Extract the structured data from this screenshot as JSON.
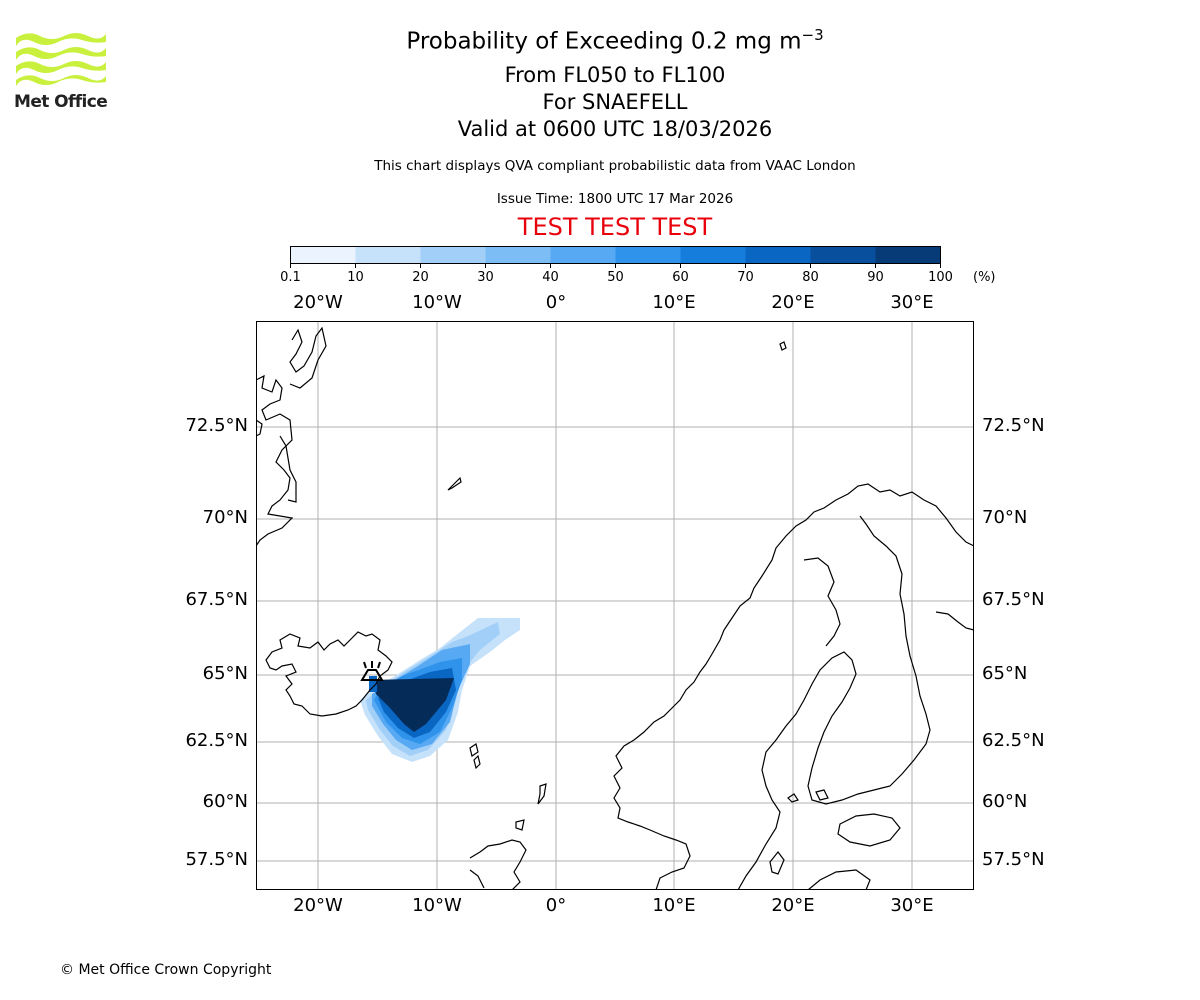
{
  "logo": {
    "text": "Met Office",
    "color": "#c8f03c"
  },
  "titles": {
    "main": "Probability of Exceeding 0.2 mg m",
    "main_exponent": "−3",
    "levels": "From FL050 to FL100",
    "volcano": "For SNAEFELL",
    "valid": "Valid at 0600 UTC 18/03/2026"
  },
  "notes": {
    "compliance": "This chart displays QVA compliant probabilistic data from VAAC London",
    "issue_time": "Issue Time: 1800 UTC 17 Mar 2026"
  },
  "test_banner": "TEST TEST TEST",
  "colorbar": {
    "ticks": [
      "0.1",
      "10",
      "20",
      "30",
      "40",
      "50",
      "60",
      "70",
      "80",
      "90",
      "100"
    ],
    "unit": "(%)",
    "colors": [
      "#eaf3fe",
      "#c6e2fb",
      "#a2cff8",
      "#7dbdf5",
      "#56a9f2",
      "#2f93ec",
      "#157ddc",
      "#0966c2",
      "#084f9d",
      "#073b78",
      "#052b58"
    ]
  },
  "map": {
    "lon_labels": [
      "20°W",
      "10°W",
      "0°",
      "10°E",
      "20°E",
      "30°E"
    ],
    "lat_labels": [
      "72.5°N",
      "70°N",
      "67.5°N",
      "65°N",
      "62.5°N",
      "60°N",
      "57.5°N"
    ],
    "volcano_marker": "volcano-icon"
  },
  "copyright": "© Met Office Crown Copyright"
}
